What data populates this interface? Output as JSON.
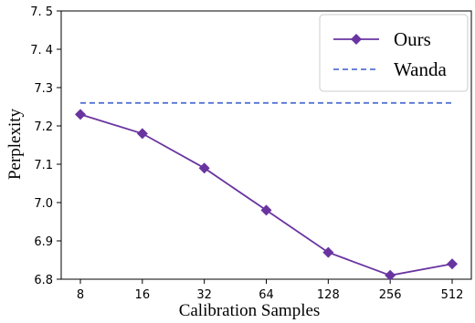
{
  "chart_data": {
    "type": "line",
    "title": "",
    "xlabel": "Calibration Samples",
    "ylabel": "Perplexity",
    "categories": [
      "8",
      "16",
      "32",
      "64",
      "128",
      "256",
      "512"
    ],
    "x_scale": "log2",
    "ylim": [
      6.8,
      7.5
    ],
    "yticks": [
      "6.8",
      "6.9",
      "7.0",
      "7.1",
      "7.2",
      "7.3",
      "7. 4",
      "7. 5"
    ],
    "yticks_values": [
      6.8,
      6.9,
      7.0,
      7.1,
      7.2,
      7.3,
      7.4,
      7.5
    ],
    "grid": false,
    "legend_position": "top-right",
    "series": [
      {
        "name": "Ours",
        "style": "solid",
        "marker": "diamond",
        "color": "#6a34a0",
        "values": [
          7.23,
          7.18,
          7.09,
          6.98,
          6.87,
          6.81,
          6.84
        ]
      },
      {
        "name": "Wanda",
        "style": "dashed",
        "marker": "none",
        "color": "#5573d4",
        "values": [
          7.26,
          7.26,
          7.26,
          7.26,
          7.26,
          7.26,
          7.26
        ]
      }
    ]
  }
}
